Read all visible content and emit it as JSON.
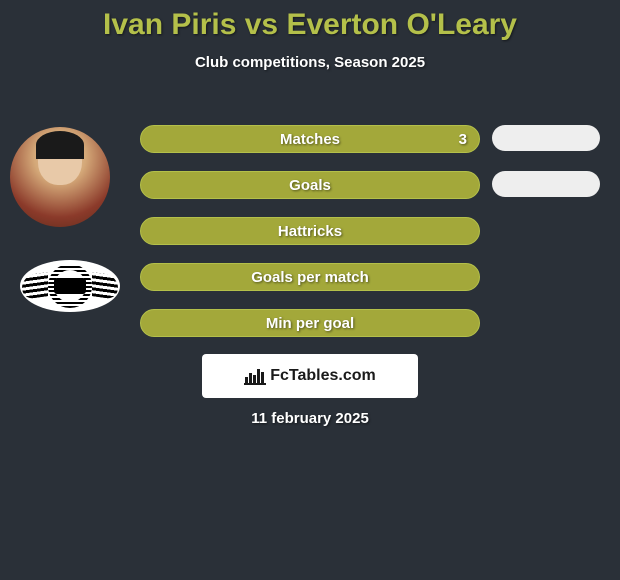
{
  "title": "Ivan Piris vs Everton O'Leary",
  "subtitle": "Club competitions, Season 2025",
  "date": "11 february 2025",
  "colors": {
    "background": "#2a3038",
    "accent": "#a3a83a",
    "accent_light": "#b4c04a",
    "pill": "#eeeeee",
    "text": "#ffffff"
  },
  "stats": [
    {
      "label": "Matches",
      "value": "3",
      "fill_pct": 100,
      "show_pill": true,
      "show_value": true
    },
    {
      "label": "Goals",
      "value": "",
      "fill_pct": 100,
      "show_pill": true,
      "show_value": false
    },
    {
      "label": "Hattricks",
      "value": "",
      "fill_pct": 100,
      "show_pill": false,
      "show_value": false
    },
    {
      "label": "Goals per match",
      "value": "",
      "fill_pct": 100,
      "show_pill": false,
      "show_value": false
    },
    {
      "label": "Min per goal",
      "value": "",
      "fill_pct": 100,
      "show_pill": false,
      "show_value": false
    }
  ],
  "bar_style": {
    "height": 28,
    "gap": 18,
    "radius": 14,
    "label_fontsize": 15,
    "font_weight": "bold"
  },
  "logo_text": "FcTables.com"
}
